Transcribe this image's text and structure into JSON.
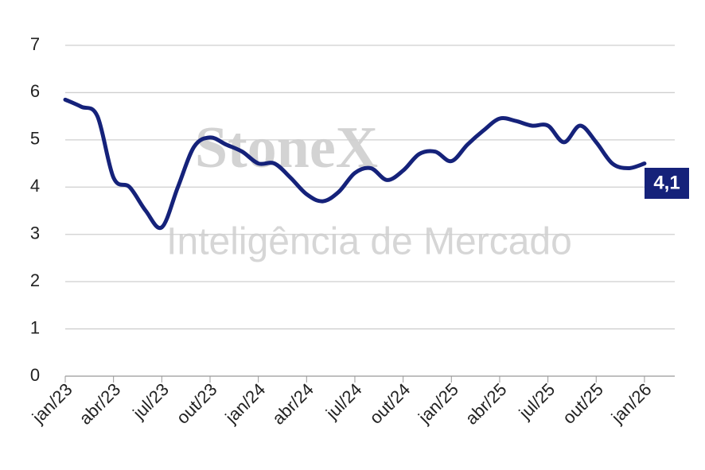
{
  "chart_data": {
    "type": "line",
    "watermark": [
      "StoneX",
      "Inteligência de Mercado"
    ],
    "categories": [
      "jan/23",
      null,
      null,
      "abr/23",
      null,
      null,
      "jul/23",
      null,
      null,
      "out/23",
      null,
      null,
      "jan/24",
      null,
      null,
      "abr/24",
      null,
      null,
      "jul/24",
      null,
      null,
      "out/24",
      null,
      null,
      "jan/25",
      null,
      null,
      "abr/25",
      null,
      null,
      "jul/25",
      null,
      null,
      "out/25",
      null,
      null,
      "jan/26"
    ],
    "series": [
      {
        "color": "#15227a",
        "values": [
          5.85,
          5.7,
          5.5,
          4.2,
          4.0,
          3.5,
          3.15,
          4.0,
          4.85,
          5.05,
          4.9,
          4.75,
          4.5,
          4.5,
          4.2,
          3.85,
          3.7,
          3.9,
          4.3,
          4.4,
          4.15,
          4.35,
          4.7,
          4.75,
          4.55,
          4.9,
          5.2,
          5.45,
          5.4,
          5.3,
          5.3,
          4.95,
          5.3,
          4.95,
          4.5,
          4.4,
          4.5
        ]
      }
    ],
    "annotation": "4,1",
    "ylim": [
      0,
      7
    ],
    "yticks": [
      0,
      1,
      2,
      3,
      4,
      5,
      6,
      7
    ],
    "grid": true
  }
}
